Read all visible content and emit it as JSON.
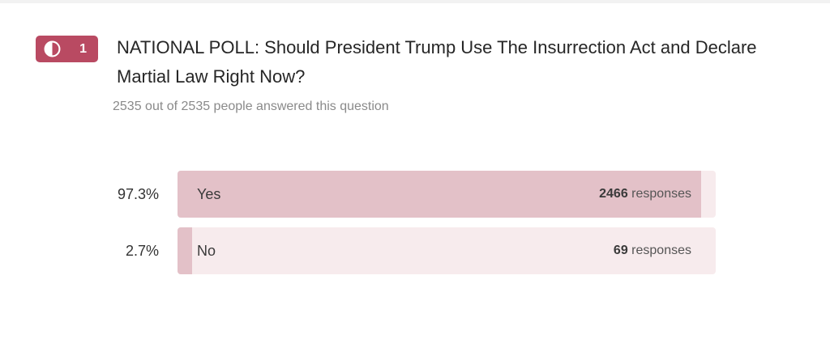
{
  "question": {
    "number": "1",
    "badge_icon": "half-circle-icon",
    "title": "NATIONAL POLL: Should President Trump Use The Insurrection Act and Declare Martial Law Right Now?",
    "answered_summary": "2535 out of 2535 people answered this question"
  },
  "colors": {
    "badge": "#b94a62",
    "bar_track": "#f7ebed",
    "bar_fill": "#e3c1c8"
  },
  "results": [
    {
      "percent_label": "97.3%",
      "percent": 97.3,
      "option": "Yes",
      "count": "2466",
      "count_suffix": "responses"
    },
    {
      "percent_label": "2.7%",
      "percent": 2.7,
      "option": "No",
      "count": "69",
      "count_suffix": "responses"
    }
  ]
}
